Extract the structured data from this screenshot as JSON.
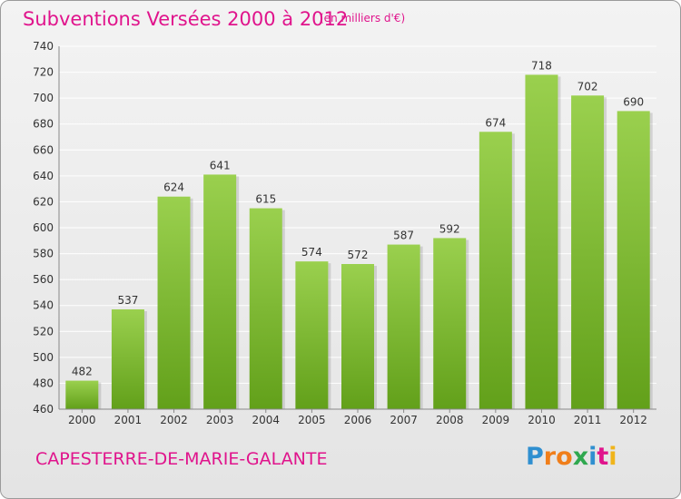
{
  "header": {
    "title": "Subventions Versées 2000 à 2012",
    "unit": "(en milliers d'€)"
  },
  "footer": {
    "location": "CAPESTERRE-DE-MARIE-GALANTE",
    "logo_letters": [
      "P",
      "r",
      "o",
      "x",
      "i",
      "t",
      "i"
    ],
    "logo_colors": [
      "#2f8fd0",
      "#f07e1a",
      "#f07e1a",
      "#2fa84f",
      "#2f8fd0",
      "#e0148c",
      "#f0b41a"
    ]
  },
  "colors": {
    "bar_top": "#9ad04e",
    "bar_bottom": "#62a01a",
    "grid": "#ffffff",
    "axis": "#888888"
  },
  "chart_data": {
    "type": "bar",
    "categories": [
      "2000",
      "2001",
      "2002",
      "2003",
      "2004",
      "2005",
      "2006",
      "2007",
      "2008",
      "2009",
      "2010",
      "2011",
      "2012"
    ],
    "values": [
      482,
      537,
      624,
      641,
      615,
      574,
      572,
      587,
      592,
      674,
      718,
      702,
      690
    ],
    "title": "Subventions Versées 2000 à 2012",
    "xlabel": "",
    "ylabel": "",
    "ylim": [
      460,
      740
    ],
    "yticks": [
      460,
      480,
      500,
      520,
      540,
      560,
      580,
      600,
      620,
      640,
      660,
      680,
      700,
      720,
      740
    ],
    "grid": true
  }
}
